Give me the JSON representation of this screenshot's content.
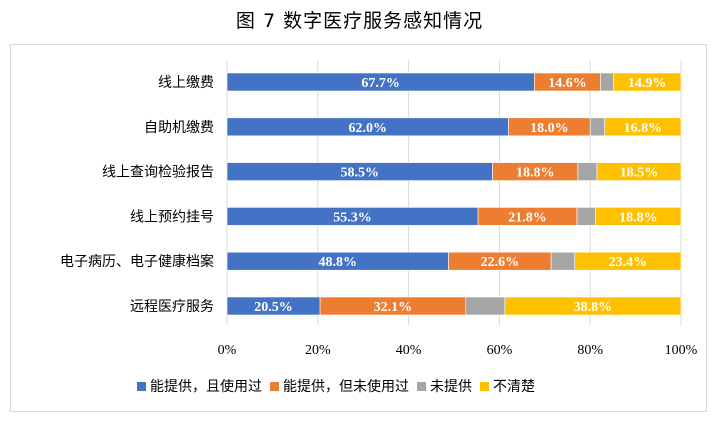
{
  "page_title": "图 7  数字医疗服务感知情况",
  "chart_data": {
    "type": "bar",
    "orientation": "horizontal",
    "stacked": "percent",
    "title": "",
    "xlabel": "",
    "ylabel": "",
    "xlim": [
      0,
      100
    ],
    "x_ticks": [
      "0%",
      "20%",
      "40%",
      "60%",
      "80%",
      "100%"
    ],
    "grid": true,
    "legend_position": "bottom",
    "categories": [
      "线上缴费",
      "自助机缴费",
      "线上查询检验报告",
      "线上预约挂号",
      "电子病历、电子健康档案",
      "远程医疗服务"
    ],
    "series": [
      {
        "name": "能提供，且使用过",
        "color": "#4472C4",
        "values": [
          67.7,
          62.0,
          58.5,
          55.3,
          48.8,
          20.5
        ],
        "labels": [
          "67.7%",
          "62.0%",
          "58.5%",
          "55.3%",
          "48.8%",
          "20.5%"
        ]
      },
      {
        "name": "能提供，但未使用过",
        "color": "#ED7D31",
        "values": [
          14.6,
          18.0,
          18.8,
          21.8,
          22.6,
          32.1
        ],
        "labels": [
          "14.6%",
          "18.0%",
          "18.8%",
          "21.8%",
          "22.6%",
          "32.1%"
        ]
      },
      {
        "name": "未提供",
        "color": "#A5A5A5",
        "values": [
          2.8,
          3.2,
          4.2,
          4.1,
          5.2,
          8.6
        ],
        "labels": [
          "",
          "",
          "",
          "",
          "",
          ""
        ]
      },
      {
        "name": "不清楚",
        "color": "#FFC000",
        "values": [
          14.9,
          16.8,
          18.5,
          18.8,
          23.4,
          38.8
        ],
        "labels": [
          "14.9%",
          "16.8%",
          "18.5%",
          "18.8%",
          "23.4%",
          "38.8%"
        ]
      }
    ]
  }
}
